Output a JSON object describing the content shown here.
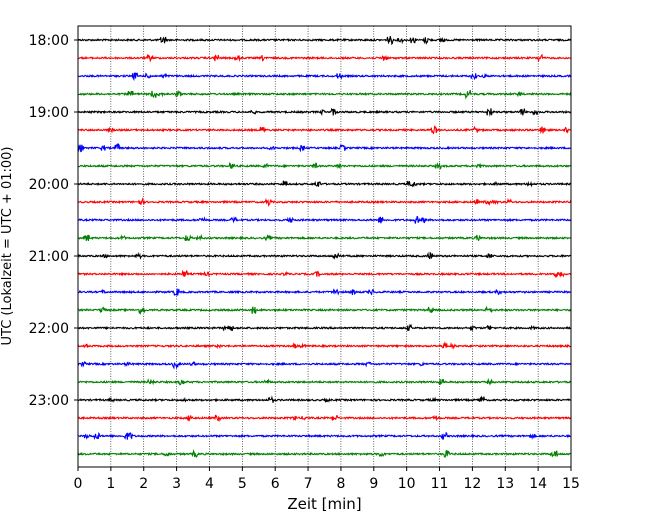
{
  "chart_data": {
    "type": "line",
    "title": "",
    "xlabel": "Zeit  [min]",
    "ylabel": "UTC (Lokalzeit = UTC + 01:00)",
    "xlim": [
      0,
      15
    ],
    "x_ticks": [
      0,
      1,
      2,
      3,
      4,
      5,
      6,
      7,
      8,
      9,
      10,
      11,
      12,
      13,
      14,
      15
    ],
    "y_ticks": [
      "18:00",
      "19:00",
      "20:00",
      "21:00",
      "22:00",
      "23:00"
    ],
    "grid": "vertical dotted",
    "legend": "none",
    "trace_minutes": 15,
    "trace_colors": [
      "#000000",
      "#ff0000",
      "#0000ff",
      "#008000"
    ],
    "traces": [
      {
        "start": "18:00",
        "color": "#000000"
      },
      {
        "start": "18:15",
        "color": "#ff0000"
      },
      {
        "start": "18:30",
        "color": "#0000ff"
      },
      {
        "start": "18:45",
        "color": "#008000"
      },
      {
        "start": "19:00",
        "color": "#000000"
      },
      {
        "start": "19:15",
        "color": "#ff0000"
      },
      {
        "start": "19:30",
        "color": "#0000ff"
      },
      {
        "start": "19:45",
        "color": "#008000"
      },
      {
        "start": "20:00",
        "color": "#000000"
      },
      {
        "start": "20:15",
        "color": "#ff0000"
      },
      {
        "start": "20:30",
        "color": "#0000ff"
      },
      {
        "start": "20:45",
        "color": "#008000"
      },
      {
        "start": "21:00",
        "color": "#000000"
      },
      {
        "start": "21:15",
        "color": "#ff0000"
      },
      {
        "start": "21:30",
        "color": "#0000ff"
      },
      {
        "start": "21:45",
        "color": "#008000"
      },
      {
        "start": "22:00",
        "color": "#000000"
      },
      {
        "start": "22:15",
        "color": "#ff0000"
      },
      {
        "start": "22:30",
        "color": "#0000ff"
      },
      {
        "start": "22:45",
        "color": "#008000"
      },
      {
        "start": "23:00",
        "color": "#000000"
      },
      {
        "start": "23:15",
        "color": "#ff0000"
      },
      {
        "start": "23:30",
        "color": "#0000ff"
      },
      {
        "start": "23:45",
        "color": "#008000"
      }
    ]
  }
}
